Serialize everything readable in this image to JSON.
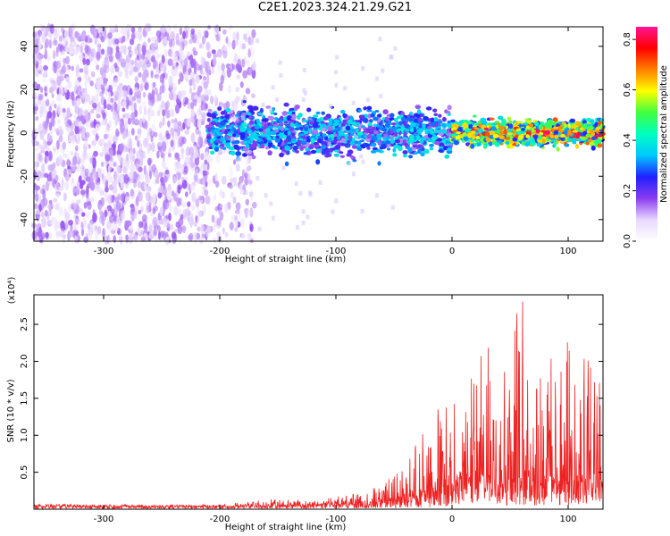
{
  "chart_data": [
    {
      "type": "heatmap",
      "title": "C2E1.2023.324.21.29.G21",
      "xlabel": "Height of straight line (km)",
      "ylabel": "Frequency (Hz)",
      "xlim": [
        -360,
        130
      ],
      "ylim": [
        -50,
        49
      ],
      "xticks": [
        -300,
        -200,
        -100,
        0,
        100
      ],
      "yticks": [
        -40,
        -20,
        0,
        20,
        40
      ],
      "colorbar": {
        "label": "Normalized spectral amplitude",
        "range": [
          0.0,
          0.85
        ],
        "ticks": [
          0.0,
          0.2,
          0.4,
          0.6,
          0.8
        ],
        "colormap": [
          "#ffffff",
          "#e8d8ff",
          "#8a3cf0",
          "#2020ff",
          "#00c8ff",
          "#00ffc0",
          "#40ff40",
          "#ffff00",
          "#ff8000",
          "#ff0000",
          "#ff1493"
        ]
      },
      "regions": [
        {
          "x": [
            -360,
            -170
          ],
          "description_value": 0.1,
          "freq_span": [
            -50,
            49
          ]
        },
        {
          "x": [
            -210,
            0
          ],
          "description_value": 0.25,
          "freq_span": [
            -15,
            15
          ]
        },
        {
          "x": [
            0,
            130
          ],
          "description_value": 0.45,
          "freq_span": [
            -8,
            8
          ]
        }
      ],
      "grid": false
    },
    {
      "type": "line",
      "xlabel": "Height of straight line (km)",
      "ylabel": "SNR (10 * v/v)",
      "multiplier": "(x10⁴)",
      "xlim": [
        -360,
        130
      ],
      "ylim": [
        0,
        2.9
      ],
      "xticks": [
        -300,
        -200,
        -100,
        0,
        100
      ],
      "yticks": [
        0.5,
        1.0,
        1.5,
        2.0,
        2.5
      ],
      "series": [
        {
          "color": "#ee2222",
          "x": [
            -360,
            -300,
            -250,
            -200,
            -150,
            -120,
            -100,
            -80,
            -60,
            -40,
            -20,
            0,
            20,
            40,
            60,
            80,
            100,
            120,
            130
          ],
          "baseline": [
            0.05,
            0.04,
            0.04,
            0.04,
            0.05,
            0.06,
            0.07,
            0.08,
            0.1,
            0.15,
            0.25,
            0.35,
            0.45,
            0.45,
            0.45,
            0.45,
            0.4,
            0.35,
            0.35
          ],
          "envelope": [
            0.07,
            0.07,
            0.06,
            0.06,
            0.15,
            0.12,
            0.17,
            0.22,
            0.35,
            0.6,
            1.3,
            1.5,
            2.0,
            2.45,
            2.9,
            2.1,
            2.3,
            2.2,
            1.9
          ]
        }
      ],
      "grid": false
    }
  ]
}
